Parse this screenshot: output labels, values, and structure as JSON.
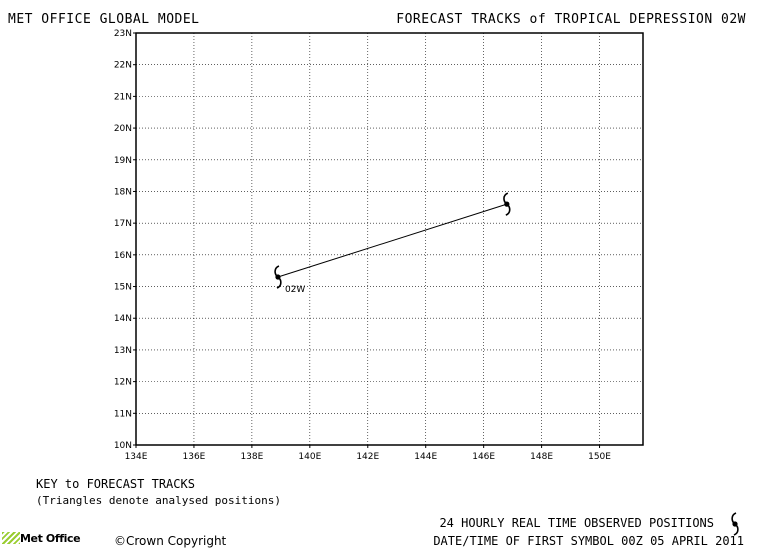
{
  "header": {
    "model_title": "MET OFFICE GLOBAL MODEL",
    "forecast_title": "FORECAST TRACKS of TROPICAL DEPRESSION 02W"
  },
  "map": {
    "lat_range": [
      10,
      23
    ],
    "lon_range": [
      134,
      151.5
    ],
    "lat_ticks": [
      "10N",
      "11N",
      "12N",
      "13N",
      "14N",
      "15N",
      "16N",
      "17N",
      "18N",
      "19N",
      "20N",
      "21N",
      "22N",
      "23N"
    ],
    "lon_ticks": [
      "134E",
      "136E",
      "138E",
      "140E",
      "142E",
      "144E",
      "146E",
      "148E",
      "150E"
    ],
    "gridlines": "dotted",
    "track": {
      "storm_label": "02W",
      "points": [
        {
          "lon": 138.9,
          "lat": 15.3
        },
        {
          "lon": 146.8,
          "lat": 17.6
        }
      ]
    },
    "symbol_icon": "tropical-cyclone-symbol-icon"
  },
  "key": {
    "title": "KEY to FORECAST TRACKS",
    "note": "(Triangles denote analysed positions)"
  },
  "footer": {
    "observed_label": "24 HOURLY REAL TIME OBSERVED POSITIONS",
    "datetime_label": "DATE/TIME OF FIRST SYMBOL 00Z 05 APRIL 2011",
    "copyright": "Crown Copyright",
    "logo_text": "Met Office",
    "logo_color": "#9acd32"
  }
}
